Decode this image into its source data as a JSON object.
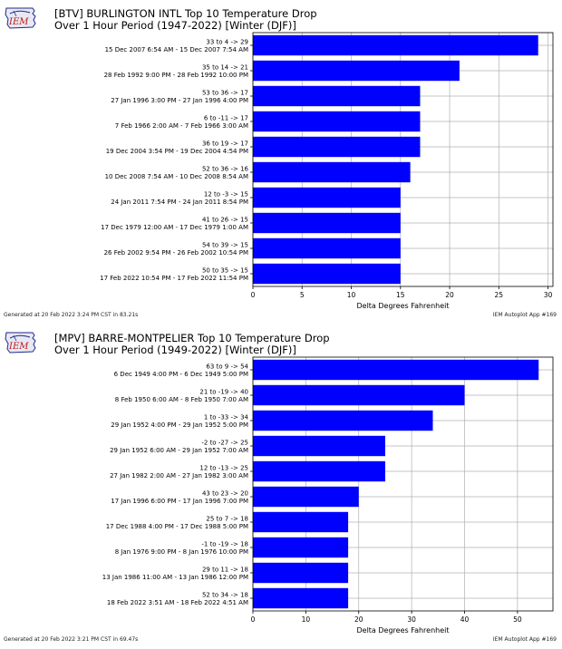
{
  "colors": {
    "bar": "#0000ff",
    "grid": "#b0b0b0"
  },
  "chart_data": [
    {
      "type": "bar",
      "orientation": "horizontal",
      "logo_text": "IEM",
      "title": "[BTV] BURLINGTON INTL Top 10 Temperature Drop",
      "subtitle": "Over 1 Hour Period (1947-2022) [Winter (DJF)]",
      "xlabel": "Delta Degrees Fahrenheit",
      "xlim": [
        0,
        30.5
      ],
      "xticks": [
        0,
        5,
        10,
        15,
        20,
        25,
        30
      ],
      "grid": true,
      "footer_left": "Generated at 20 Feb 2022 3:24 PM CST in 83.21s",
      "footer_right": "IEM Autoplot App #169",
      "bars": [
        {
          "label1": "33 to 4 -> 29",
          "label2": "15 Dec 2007 6:54 AM - 15 Dec 2007 7:54 AM",
          "value": 29
        },
        {
          "label1": "35 to 14 -> 21",
          "label2": "28 Feb 1992 9:00 PM - 28 Feb 1992 10:00 PM",
          "value": 21
        },
        {
          "label1": "53 to 36 -> 17",
          "label2": "27 Jan 1996 3:00 PM - 27 Jan 1996 4:00 PM",
          "value": 17
        },
        {
          "label1": "6 to -11 -> 17",
          "label2": "7 Feb 1966 2:00 AM - 7 Feb 1966 3:00 AM",
          "value": 17
        },
        {
          "label1": "36 to 19 -> 17",
          "label2": "19 Dec 2004 3:54 PM - 19 Dec 2004 4:54 PM",
          "value": 17
        },
        {
          "label1": "52 to 36 -> 16",
          "label2": "10 Dec 2008 7:54 AM - 10 Dec 2008 8:54 AM",
          "value": 16
        },
        {
          "label1": "12 to -3 -> 15",
          "label2": "24 Jan 2011 7:54 PM - 24 Jan 2011 8:54 PM",
          "value": 15
        },
        {
          "label1": "41 to 26 -> 15",
          "label2": "17 Dec 1979 12:00 AM - 17 Dec 1979 1:00 AM",
          "value": 15
        },
        {
          "label1": "54 to 39 -> 15",
          "label2": "26 Feb 2002 9:54 PM - 26 Feb 2002 10:54 PM",
          "value": 15
        },
        {
          "label1": "50 to 35 -> 15",
          "label2": "17 Feb 2022 10:54 PM - 17 Feb 2022 11:54 PM",
          "value": 15
        }
      ]
    },
    {
      "type": "bar",
      "orientation": "horizontal",
      "logo_text": "IEM",
      "title": "[MPV] BARRE-MONTPELIER Top 10 Temperature Drop",
      "subtitle": "Over 1 Hour Period (1949-2022) [Winter (DJF)]",
      "xlabel": "Delta Degrees Fahrenheit",
      "xlim": [
        0,
        56.7
      ],
      "xticks": [
        0,
        10,
        20,
        30,
        40,
        50
      ],
      "grid": true,
      "footer_left": "Generated at 20 Feb 2022 3:21 PM CST in 69.47s",
      "footer_right": "IEM Autoplot App #169",
      "bars": [
        {
          "label1": "63 to 9 -> 54",
          "label2": "6 Dec 1949 4:00 PM - 6 Dec 1949 5:00 PM",
          "value": 54
        },
        {
          "label1": "21 to -19 -> 40",
          "label2": "8 Feb 1950 6:00 AM - 8 Feb 1950 7:00 AM",
          "value": 40
        },
        {
          "label1": "1 to -33 -> 34",
          "label2": "29 Jan 1952 4:00 PM - 29 Jan 1952 5:00 PM",
          "value": 34
        },
        {
          "label1": "-2 to -27 -> 25",
          "label2": "29 Jan 1952 6:00 AM - 29 Jan 1952 7:00 AM",
          "value": 25
        },
        {
          "label1": "12 to -13 -> 25",
          "label2": "27 Jan 1982 2:00 AM - 27 Jan 1982 3:00 AM",
          "value": 25
        },
        {
          "label1": "43 to 23 -> 20",
          "label2": "17 Jan 1996 6:00 PM - 17 Jan 1996 7:00 PM",
          "value": 20
        },
        {
          "label1": "25 to 7 -> 18",
          "label2": "17 Dec 1988 4:00 PM - 17 Dec 1988 5:00 PM",
          "value": 18
        },
        {
          "label1": "-1 to -19 -> 18",
          "label2": "8 Jan 1976 9:00 PM - 8 Jan 1976 10:00 PM",
          "value": 18
        },
        {
          "label1": "29 to 11 -> 18",
          "label2": "13 Jan 1986 11:00 AM - 13 Jan 1986 12:00 PM",
          "value": 18
        },
        {
          "label1": "52 to 34 -> 18",
          "label2": "18 Feb 2022 3:51 AM - 18 Feb 2022 4:51 AM",
          "value": 18
        }
      ]
    }
  ]
}
